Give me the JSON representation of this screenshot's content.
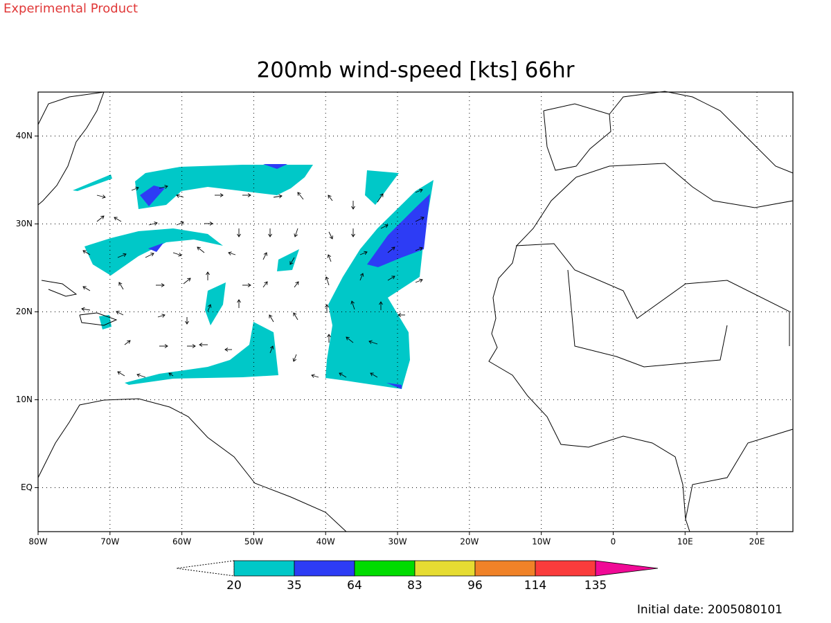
{
  "header": {
    "label": "Experimental Product"
  },
  "title": "200mb wind-speed [kts] 66hr",
  "map": {
    "xlim": [
      -80,
      25
    ],
    "ylim": [
      -5,
      45
    ],
    "xticks": [
      {
        "value": -80,
        "label": "80W"
      },
      {
        "value": -70,
        "label": "70W"
      },
      {
        "value": -60,
        "label": "60W"
      },
      {
        "value": -50,
        "label": "50W"
      },
      {
        "value": -40,
        "label": "40W"
      },
      {
        "value": -30,
        "label": "30W"
      },
      {
        "value": -20,
        "label": "20W"
      },
      {
        "value": -10,
        "label": "10W"
      },
      0,
      {
        "value": 10,
        "label": "10E"
      },
      {
        "value": 20,
        "label": "20E"
      }
    ],
    "yticks": [
      {
        "value": 0,
        "label": "EQ"
      },
      {
        "value": 10,
        "label": "10N"
      },
      {
        "value": 20,
        "label": "20N"
      },
      {
        "value": 30,
        "label": "30N"
      },
      {
        "value": 40,
        "label": "40N"
      }
    ],
    "grid": true
  },
  "colorbar": {
    "levels": [
      20,
      35,
      64,
      83,
      96,
      114,
      135
    ],
    "colors": [
      "#00c8c8",
      "#2d3cf5",
      "#00dc00",
      "#e6dc32",
      "#f08228",
      "#fa3c3c",
      "#f00a96"
    ]
  },
  "footer": {
    "label": "Initial date: 2005080101"
  }
}
